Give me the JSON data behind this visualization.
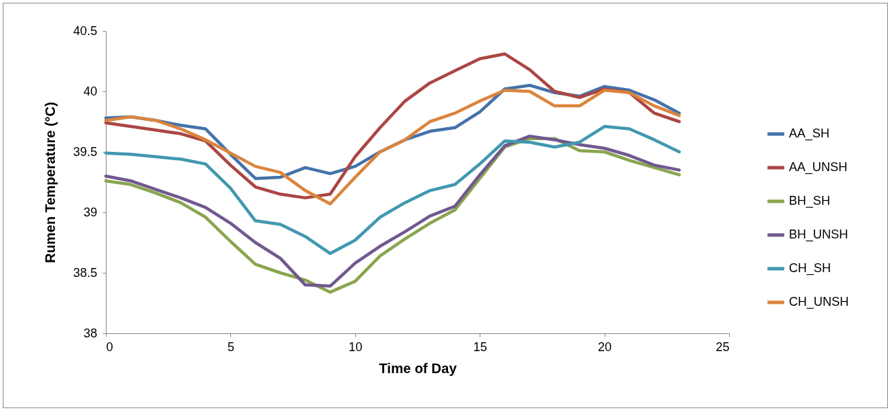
{
  "chart_data": {
    "type": "line",
    "xlabel": "Time of Day",
    "ylabel": "Rumen Temperature (°C)",
    "x": [
      0,
      1,
      2,
      3,
      4,
      5,
      6,
      7,
      8,
      9,
      10,
      11,
      12,
      13,
      14,
      15,
      16,
      17,
      18,
      19,
      20,
      21,
      22,
      23
    ],
    "xlim": [
      0,
      25
    ],
    "xticks": [
      0,
      5,
      10,
      15,
      20,
      25
    ],
    "ylim": [
      38,
      40.5
    ],
    "yticks": [
      38,
      38.5,
      39,
      39.5,
      40,
      40.5
    ],
    "grid": false,
    "legend": "right",
    "marker": "none",
    "line_style": "solid",
    "series": [
      {
        "name": "AA_SH",
        "color": "#4372aa",
        "values": [
          39.78,
          39.79,
          39.76,
          39.72,
          39.69,
          39.48,
          39.28,
          39.29,
          39.37,
          39.32,
          39.38,
          39.5,
          39.6,
          39.67,
          39.7,
          39.83,
          40.02,
          40.05,
          39.99,
          39.96,
          40.04,
          40.01,
          39.93,
          39.82
        ]
      },
      {
        "name": "AA_UNSH",
        "color": "#aa4644",
        "values": [
          39.74,
          39.71,
          39.68,
          39.65,
          39.59,
          39.39,
          39.21,
          39.15,
          39.12,
          39.15,
          39.46,
          39.7,
          39.92,
          40.07,
          40.17,
          40.27,
          40.31,
          40.18,
          40,
          39.95,
          40.02,
          39.99,
          39.82,
          39.75
        ]
      },
      {
        "name": "BH_SH",
        "color": "#89a54e",
        "values": [
          39.26,
          39.23,
          39.16,
          39.08,
          38.96,
          38.76,
          38.57,
          38.5,
          38.44,
          38.34,
          38.43,
          38.64,
          38.78,
          38.91,
          39.02,
          39.28,
          39.54,
          39.61,
          39.61,
          39.51,
          39.5,
          39.43,
          39.37,
          39.31
        ]
      },
      {
        "name": "BH_UNSH",
        "color": "#71588f",
        "values": [
          39.3,
          39.26,
          39.19,
          39.12,
          39.04,
          38.91,
          38.75,
          38.62,
          38.4,
          38.39,
          38.58,
          38.72,
          38.84,
          38.97,
          39.05,
          39.31,
          39.55,
          39.63,
          39.6,
          39.56,
          39.53,
          39.47,
          39.39,
          39.35
        ]
      },
      {
        "name": "CH_SH",
        "color": "#4198af",
        "values": [
          39.49,
          39.48,
          39.46,
          39.44,
          39.4,
          39.2,
          38.93,
          38.9,
          38.8,
          38.66,
          38.77,
          38.96,
          39.08,
          39.18,
          39.23,
          39.4,
          39.59,
          39.58,
          39.54,
          39.58,
          39.71,
          39.69,
          39.6,
          39.5
        ]
      },
      {
        "name": "CH_UNSH",
        "color": "#db843d",
        "values": [
          39.76,
          39.79,
          39.76,
          39.69,
          39.6,
          39.49,
          39.38,
          39.33,
          39.18,
          39.07,
          39.29,
          39.5,
          39.6,
          39.75,
          39.82,
          39.92,
          40.01,
          40,
          39.88,
          39.88,
          40.01,
          39.99,
          39.88,
          39.8
        ]
      }
    ]
  }
}
